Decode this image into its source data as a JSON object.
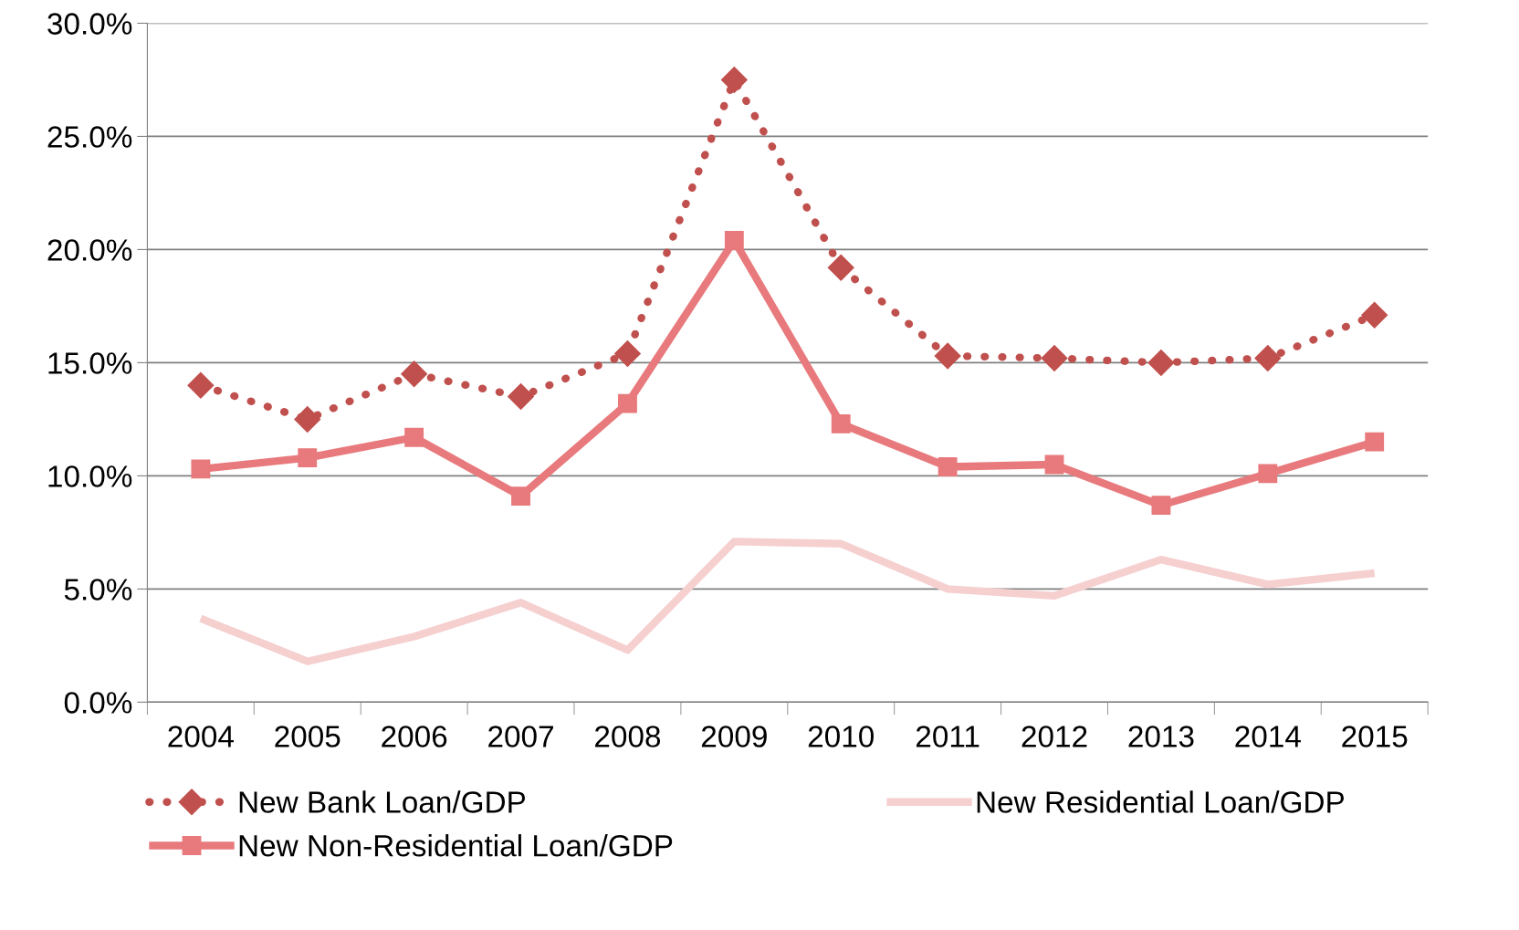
{
  "chart_data": {
    "type": "line",
    "categories": [
      "2004",
      "2005",
      "2006",
      "2007",
      "2008",
      "2009",
      "2010",
      "2011",
      "2012",
      "2013",
      "2014",
      "2015"
    ],
    "series": [
      {
        "name": "New Bank Loan/GDP",
        "color": "#c0504d",
        "marker": "diamond",
        "line_style": "dotted",
        "values": [
          14.0,
          12.5,
          14.5,
          13.5,
          15.4,
          27.5,
          19.2,
          15.3,
          15.2,
          15.0,
          15.2,
          17.1
        ]
      },
      {
        "name": "New Non-Residential Loan/GDP",
        "color": "#e8797c",
        "marker": "square",
        "line_style": "solid",
        "values": [
          10.3,
          10.8,
          11.7,
          9.1,
          13.2,
          20.4,
          12.3,
          10.4,
          10.5,
          8.7,
          10.1,
          11.5
        ]
      },
      {
        "name": "New Residential Loan/GDP",
        "color": "#f6cfcf",
        "marker": "none",
        "line_style": "solid",
        "values": [
          3.7,
          1.8,
          2.9,
          4.4,
          2.3,
          7.1,
          7.0,
          5.0,
          4.7,
          6.3,
          5.2,
          5.7
        ]
      }
    ],
    "ylim": [
      0,
      30
    ],
    "yticks": [
      {
        "value": 0,
        "label": "0.0%"
      },
      {
        "value": 5,
        "label": "5.0%"
      },
      {
        "value": 10,
        "label": "10.0%"
      },
      {
        "value": 15,
        "label": "15.0%"
      },
      {
        "value": 20,
        "label": "20.0%"
      },
      {
        "value": 25,
        "label": "25.0%"
      },
      {
        "value": 30,
        "label": "30.0%"
      }
    ],
    "grid": "y",
    "legend": "bottom"
  }
}
